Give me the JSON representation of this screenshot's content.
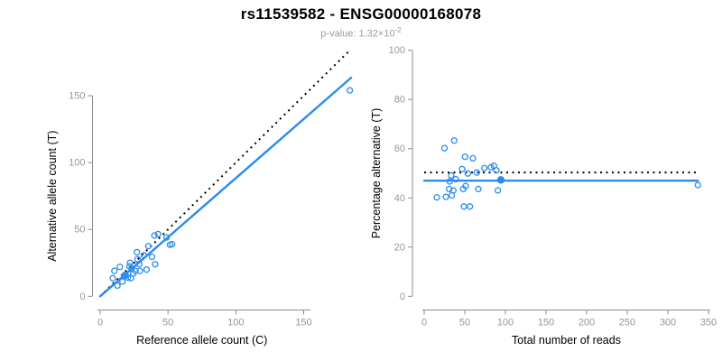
{
  "header": {
    "title": "rs11539582 - ENSG00000168078",
    "subtitle_prefix": "p-value: 1.32×10",
    "subtitle_exponent": "-2"
  },
  "colors": {
    "accent_blue": "#2b8cee",
    "axis_gray": "#8c8c8c",
    "tick_text_gray": "#969696",
    "reference_line_black": "#000000",
    "axis_title_black": "#000000"
  },
  "chart_data": [
    {
      "type": "scatter",
      "panel": "left",
      "xlabel": "Reference allele count (C)",
      "ylabel": "Alternative allele count (T)",
      "xticks": [
        0,
        50,
        100,
        150
      ],
      "yticks": [
        0,
        50,
        100,
        150
      ],
      "xlim": [
        0,
        185
      ],
      "ylim": [
        0,
        185
      ],
      "grid": false,
      "legend": "none",
      "points": [
        [
          9.3,
          13.5
        ],
        [
          10.5,
          19
        ],
        [
          12.7,
          8
        ],
        [
          14.5,
          22
        ],
        [
          16.4,
          11
        ],
        [
          20.4,
          14
        ],
        [
          21.6,
          22.4
        ],
        [
          22,
          25
        ],
        [
          22.7,
          13.5
        ],
        [
          23.1,
          20.7
        ],
        [
          24.4,
          17
        ],
        [
          26,
          19
        ],
        [
          27.1,
          33
        ],
        [
          27.6,
          27.8
        ],
        [
          28.7,
          24
        ],
        [
          29.3,
          19
        ],
        [
          32.2,
          30.7
        ],
        [
          34.2,
          20
        ],
        [
          35.5,
          37.5
        ],
        [
          38.2,
          29.5
        ],
        [
          40,
          45.5
        ],
        [
          40.5,
          24
        ],
        [
          42.7,
          46.5
        ],
        [
          48.9,
          44
        ],
        [
          51.5,
          38.5
        ],
        [
          53,
          39
        ],
        [
          184,
          154
        ]
      ],
      "highlighted_point": [
        18.2,
        15.5
      ],
      "regression_line": {
        "style": "solid",
        "from": [
          0,
          0
        ],
        "to": [
          185,
          163.5
        ]
      },
      "reference_line": {
        "style": "dotted",
        "type": "identity",
        "from": [
          0,
          0
        ],
        "to": [
          183,
          183
        ]
      }
    },
    {
      "type": "scatter",
      "panel": "right",
      "xlabel": "Total number of reads",
      "ylabel": "Percentage alternative (T)",
      "xticks": [
        0,
        50,
        100,
        150,
        200,
        250,
        300,
        350
      ],
      "yticks": [
        0,
        20,
        40,
        60,
        80,
        100
      ],
      "xlim": [
        0,
        350
      ],
      "ylim": [
        0,
        100
      ],
      "grid": false,
      "legend": "none",
      "points": [
        [
          25,
          60.2
        ],
        [
          37,
          63.3
        ],
        [
          50.3,
          56.7
        ],
        [
          60,
          56.1
        ],
        [
          46.7,
          51.7
        ],
        [
          74.1,
          52.1
        ],
        [
          82.2,
          52.4
        ],
        [
          85.9,
          53
        ],
        [
          88.9,
          51.2
        ],
        [
          53.7,
          49.9
        ],
        [
          64.8,
          50.3
        ],
        [
          33.3,
          49.1
        ],
        [
          38.9,
          47.6
        ],
        [
          31.4,
          46.7
        ],
        [
          30.8,
          43.6
        ],
        [
          35.9,
          43
        ],
        [
          48.1,
          43.6
        ],
        [
          51.1,
          44.8
        ],
        [
          66.7,
          43.6
        ],
        [
          15.6,
          40.2
        ],
        [
          26.7,
          40.4
        ],
        [
          34,
          41
        ],
        [
          90.7,
          43
        ],
        [
          48.9,
          36.5
        ],
        [
          56.3,
          36.5
        ],
        [
          337,
          45.2
        ]
      ],
      "highlighted_point": [
        94.4,
        47.3
      ],
      "regression_line": {
        "style": "solid",
        "from": [
          0,
          47
        ],
        "to": [
          337,
          47
        ]
      },
      "reference_line": {
        "style": "dotted",
        "type": "horizontal-50",
        "from": [
          0,
          50.3
        ],
        "to": [
          337,
          50.3
        ]
      }
    }
  ]
}
